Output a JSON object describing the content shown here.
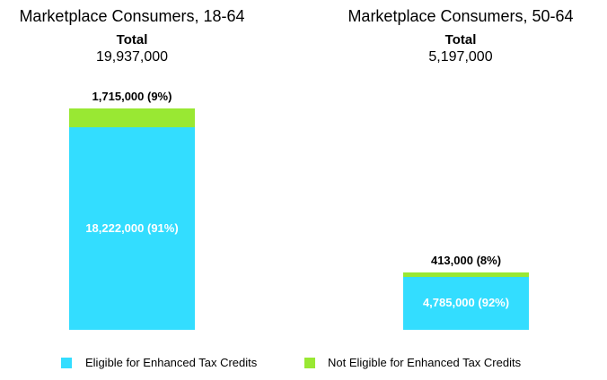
{
  "chart_data": [
    {
      "type": "bar",
      "stacked": true,
      "title": "Marketplace Consumers, 18-64",
      "total_label": "Total",
      "total": "19,937,000",
      "total_value": 19937000,
      "series": [
        {
          "name": "Eligible for Enhanced Tax Credits",
          "value": 18222000,
          "label": "18,222,000 (91%)"
        },
        {
          "name": "Not Eligible for Enhanced Tax Credits",
          "value": 1715000,
          "label": "1,715,000 (9%)"
        }
      ]
    },
    {
      "type": "bar",
      "stacked": true,
      "title": "Marketplace Consumers, 50-64",
      "total_label": "Total",
      "total": "5,197,000",
      "total_value": 5197000,
      "series": [
        {
          "name": "Eligible for Enhanced Tax Credits",
          "value": 4785000,
          "label": "4,785,000 (92%)"
        },
        {
          "name": "Not Eligible for Enhanced Tax Credits",
          "value": 413000,
          "label": "413,000 (8%)"
        }
      ]
    }
  ],
  "legend": [
    {
      "label": "Eligible for Enhanced Tax Credits",
      "color": "#33DDFF"
    },
    {
      "label": "Not Eligible for Enhanced Tax Credits",
      "color": "#99E833"
    }
  ],
  "scale_max": 19937000
}
